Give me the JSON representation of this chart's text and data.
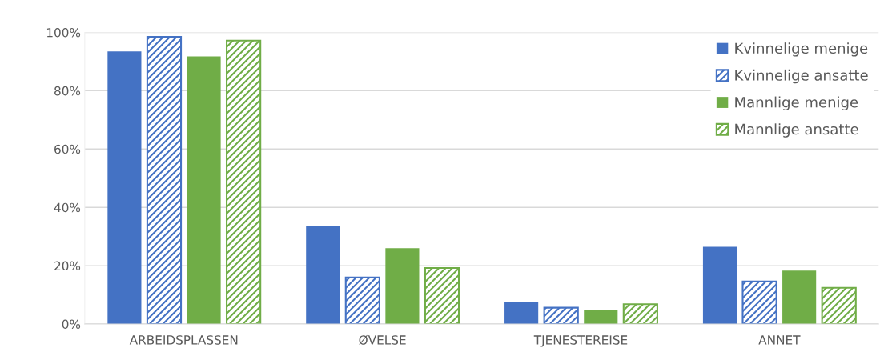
{
  "chart_data": {
    "type": "bar",
    "categories": [
      "ARBEIDSPLASSEN",
      "ØVELSE",
      "TJENESTEREISE",
      "ANNET"
    ],
    "series": [
      {
        "name": "Kvinnelige menige",
        "color": "#4472c4",
        "values": [
          93.5,
          33.7,
          7.5,
          26.5
        ]
      },
      {
        "name": "Kvinnelige ansatte",
        "color": "#4472c4",
        "values": [
          98.5,
          16.0,
          5.6,
          14.6
        ]
      },
      {
        "name": "Mannlige menige",
        "color": "#70ad47",
        "values": [
          91.8,
          26.0,
          4.9,
          18.3
        ]
      },
      {
        "name": "Mannlige ansatte",
        "color": "#70ad47",
        "values": [
          97.2,
          19.2,
          6.8,
          12.4
        ]
      }
    ],
    "ylim": [
      0,
      100
    ],
    "yticks": [
      {
        "value": 0,
        "label": "0%"
      },
      {
        "value": 20,
        "label": "20%"
      },
      {
        "value": 40,
        "label": "40%"
      },
      {
        "value": 60,
        "label": "60%"
      },
      {
        "value": 80,
        "label": "80%"
      },
      {
        "value": 100,
        "label": "100%"
      }
    ],
    "grid": "y",
    "legend": "top right"
  }
}
